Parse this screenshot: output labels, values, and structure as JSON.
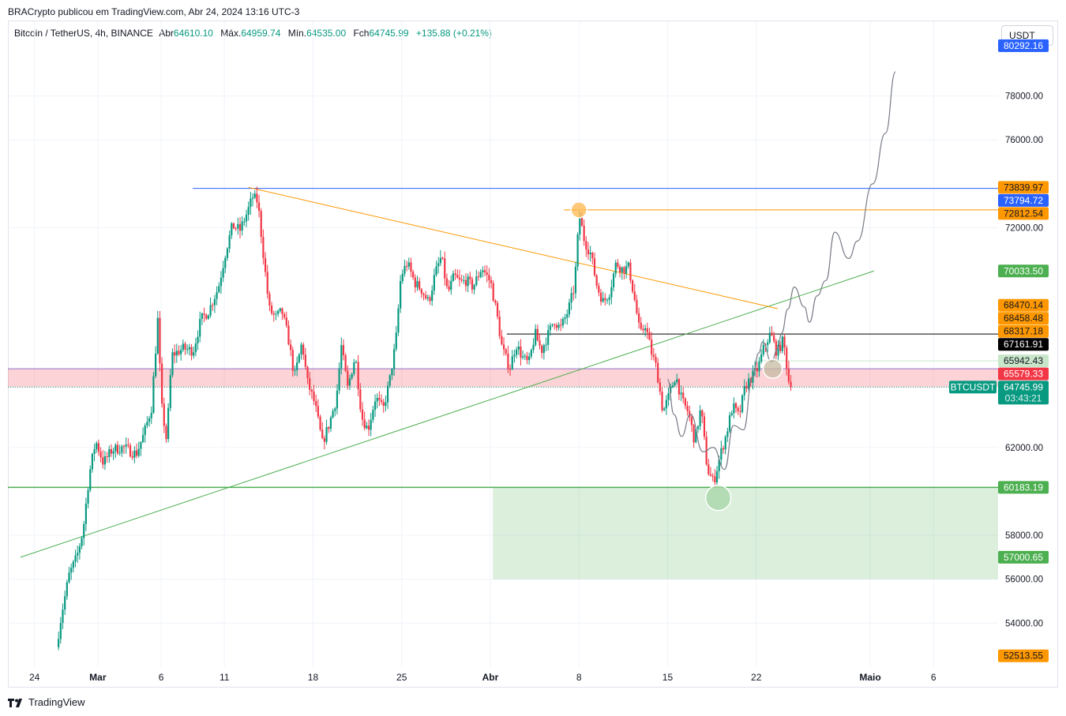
{
  "header": {
    "published": "BRACrypto publicou em TradingView.com, Abr 24, 2024 13:16 UTC-3",
    "symbol": "Bitcoin / TetherUS, 4h, BINANCE",
    "open_label": "Abr",
    "open": "64610.10",
    "high_label": "Máx.",
    "high": "64959.74",
    "low_label": "Mín.",
    "low": "64535.00",
    "close_label": "Fch",
    "close": "64745.99",
    "change": "+135.88 (+0.21%)",
    "currency": "USDT"
  },
  "footer": {
    "brand": "TradingView"
  },
  "colors": {
    "up": "#089981",
    "down": "#f23645",
    "grid": "#f0f3fa",
    "orange": "#ff9800",
    "blue": "#2962ff",
    "green": "#4caf50"
  },
  "chart_data": {
    "type": "candlestick",
    "x_ticks": [
      {
        "label": "24",
        "day": 0
      },
      {
        "label": "Mar",
        "day": 5,
        "bold": true
      },
      {
        "label": "6",
        "day": 10
      },
      {
        "label": "11",
        "day": 15
      },
      {
        "label": "18",
        "day": 22
      },
      {
        "label": "25",
        "day": 29
      },
      {
        "label": "Abr",
        "day": 36,
        "bold": true
      },
      {
        "label": "8",
        "day": 43
      },
      {
        "label": "15",
        "day": 50
      },
      {
        "label": "22",
        "day": 57
      },
      {
        "label": "Maio",
        "day": 66,
        "bold": true
      },
      {
        "label": "6",
        "day": 71
      }
    ],
    "y_ticks": [
      54000,
      56000,
      58000,
      62000,
      72000,
      76000,
      78000
    ],
    "y_range": [
      52000,
      81400
    ],
    "x_range_days": [
      -2.1,
      76.1
    ],
    "price_anchors": [
      [
        1.9,
        52900
      ],
      [
        2.3,
        54400
      ],
      [
        2.9,
        56200
      ],
      [
        3.5,
        57000
      ],
      [
        4.0,
        58200
      ],
      [
        4.5,
        60800
      ],
      [
        5.0,
        62300
      ],
      [
        5.6,
        61300
      ],
      [
        6.3,
        61900
      ],
      [
        7.2,
        62000
      ],
      [
        8.2,
        61700
      ],
      [
        8.8,
        62600
      ],
      [
        9.4,
        63800
      ],
      [
        9.9,
        67800
      ],
      [
        10.2,
        63900
      ],
      [
        10.6,
        62300
      ],
      [
        11.0,
        66200
      ],
      [
        11.9,
        66500
      ],
      [
        12.7,
        66400
      ],
      [
        13.3,
        67800
      ],
      [
        13.9,
        68200
      ],
      [
        14.7,
        69300
      ],
      [
        15.3,
        71000
      ],
      [
        15.8,
        72100
      ],
      [
        16.4,
        71900
      ],
      [
        16.9,
        72600
      ],
      [
        17.4,
        73400
      ],
      [
        17.8,
        73200
      ],
      [
        18.2,
        71000
      ],
      [
        18.7,
        68300
      ],
      [
        19.2,
        67900
      ],
      [
        19.7,
        68200
      ],
      [
        20.2,
        67000
      ],
      [
        20.7,
        65200
      ],
      [
        21.3,
        66800
      ],
      [
        21.7,
        65000
      ],
      [
        22.3,
        64000
      ],
      [
        22.9,
        62200
      ],
      [
        23.4,
        63000
      ],
      [
        24.0,
        64200
      ],
      [
        24.4,
        66600
      ],
      [
        24.9,
        64700
      ],
      [
        25.5,
        66200
      ],
      [
        26.0,
        63400
      ],
      [
        26.5,
        62800
      ],
      [
        27.1,
        64300
      ],
      [
        27.7,
        63700
      ],
      [
        28.2,
        65000
      ],
      [
        28.7,
        66800
      ],
      [
        29.1,
        69800
      ],
      [
        29.6,
        70400
      ],
      [
        30.2,
        69500
      ],
      [
        30.7,
        69200
      ],
      [
        31.3,
        68600
      ],
      [
        31.8,
        69900
      ],
      [
        32.3,
        70700
      ],
      [
        32.8,
        69000
      ],
      [
        33.3,
        69800
      ],
      [
        33.8,
        69500
      ],
      [
        34.3,
        69600
      ],
      [
        34.8,
        69300
      ],
      [
        35.5,
        70200
      ],
      [
        36.2,
        69500
      ],
      [
        36.7,
        68000
      ],
      [
        37.1,
        66500
      ],
      [
        37.7,
        65600
      ],
      [
        38.2,
        66700
      ],
      [
        38.7,
        66100
      ],
      [
        39.2,
        65800
      ],
      [
        39.7,
        67200
      ],
      [
        40.2,
        66400
      ],
      [
        40.7,
        67100
      ],
      [
        41.2,
        67800
      ],
      [
        41.7,
        67400
      ],
      [
        42.3,
        68200
      ],
      [
        42.8,
        69300
      ],
      [
        43.2,
        72600
      ],
      [
        43.6,
        71400
      ],
      [
        44.1,
        70800
      ],
      [
        44.6,
        69300
      ],
      [
        45.1,
        68600
      ],
      [
        45.6,
        69100
      ],
      [
        46.1,
        70400
      ],
      [
        46.6,
        70100
      ],
      [
        47.1,
        70200
      ],
      [
        47.6,
        68600
      ],
      [
        48.0,
        67100
      ],
      [
        48.4,
        67600
      ],
      [
        48.9,
        66300
      ],
      [
        49.3,
        65600
      ],
      [
        49.8,
        63600
      ],
      [
        50.3,
        64400
      ],
      [
        50.8,
        65300
      ],
      [
        51.3,
        64100
      ],
      [
        51.8,
        63600
      ],
      [
        52.3,
        62300
      ],
      [
        52.8,
        63800
      ],
      [
        53.3,
        61000
      ],
      [
        53.8,
        60400
      ],
      [
        54.3,
        61600
      ],
      [
        54.8,
        62600
      ],
      [
        55.3,
        63900
      ],
      [
        55.8,
        63400
      ],
      [
        56.3,
        64800
      ],
      [
        56.8,
        65200
      ],
      [
        57.3,
        65600
      ],
      [
        57.8,
        66600
      ],
      [
        58.3,
        67200
      ],
      [
        58.8,
        66300
      ],
      [
        59.3,
        66900
      ],
      [
        59.8,
        64750
      ]
    ],
    "levels": [
      {
        "value": 73794.72,
        "label": "73794.72",
        "color": "#2962ff"
      },
      {
        "value": 72812.54,
        "label": "72812.54",
        "color": "#ff9800"
      },
      {
        "value": 67161.91,
        "label": "67161.91",
        "color": "#000000"
      },
      {
        "value": 60183.19,
        "label": "60183.19",
        "color": "#4caf50"
      }
    ],
    "price_tags": [
      {
        "value": 80292.16,
        "label": "80292.16",
        "bg": "#2962ff",
        "fg": "#ffffff"
      },
      {
        "value": 73839.97,
        "label": "73839.97",
        "bg": "#ff9800",
        "fg": "#131722"
      },
      {
        "value": 73794.72,
        "label": "73794.72",
        "bg": "#2962ff",
        "fg": "#ffffff"
      },
      {
        "value": 72812.54,
        "label": "72812.54",
        "bg": "#ff9800",
        "fg": "#131722"
      },
      {
        "value": 70033.5,
        "label": "70033.50",
        "bg": "#4caf50",
        "fg": "#ffffff"
      },
      {
        "value": 68470.14,
        "label": "68470.14",
        "bg": "#ff9800",
        "fg": "#131722"
      },
      {
        "value": 68458.48,
        "label": "68458.48",
        "bg": "#ff9800",
        "fg": "#131722"
      },
      {
        "value": 68317.18,
        "label": "68317.18",
        "bg": "#ff9800",
        "fg": "#131722"
      },
      {
        "value": 67161.91,
        "label": "67161.91",
        "bg": "#000000",
        "fg": "#ffffff"
      },
      {
        "value": 65942.43,
        "label": "65942.43",
        "bg": "#c8e6c9",
        "fg": "#131722"
      },
      {
        "value": 65579.33,
        "label": "65579.33",
        "bg": "#f23645",
        "fg": "#ffffff"
      },
      {
        "value": 60183.19,
        "label": "60183.19",
        "bg": "#4caf50",
        "fg": "#ffffff"
      },
      {
        "value": 57000.65,
        "label": "57000.65",
        "bg": "#4caf50",
        "fg": "#ffffff"
      },
      {
        "value": 52513.55,
        "label": "52513.55",
        "bg": "#ff9800",
        "fg": "#131722"
      }
    ],
    "last_price": {
      "symbol": "BTCUSDT",
      "value": 64745.99,
      "label": "64745.99",
      "countdown": "03:43:21"
    },
    "zones": [
      {
        "from_day": -2.1,
        "to_day": 76.1,
        "low": 64745.99,
        "high": 65579.33,
        "color": "#f23645",
        "opacity": 0.22
      },
      {
        "from_day": 36.2,
        "to_day": 76.1,
        "low": 56000,
        "high": 60183.19,
        "color": "#4caf50",
        "opacity": 0.2
      }
    ],
    "trendlines": [
      {
        "x1": -1.1,
        "y1": 57000.65,
        "x2": 66.3,
        "y2": 70033.5,
        "color": "#4caf50"
      },
      {
        "x1": 16.9,
        "y1": 73839.97,
        "x2": 58.7,
        "y2": 68317.18,
        "color": "#ff9800"
      }
    ],
    "projection": [
      [
        50.0,
        65100
      ],
      [
        50.5,
        63500
      ],
      [
        51.1,
        62500
      ],
      [
        51.8,
        63500
      ],
      [
        52.8,
        61800
      ],
      [
        53.6,
        62000
      ],
      [
        54.5,
        61000
      ],
      [
        55.2,
        63000
      ],
      [
        56.0,
        62800
      ],
      [
        56.7,
        65200
      ],
      [
        57.2,
        66300
      ],
      [
        57.5,
        66800
      ],
      [
        58.2,
        65900
      ],
      [
        58.7,
        66500
      ],
      [
        59.0,
        67200
      ],
      [
        59.5,
        68300
      ],
      [
        60.0,
        69300
      ],
      [
        60.8,
        68400
      ],
      [
        61.2,
        67700
      ],
      [
        61.8,
        68900
      ],
      [
        62.5,
        69600
      ],
      [
        63.2,
        71800
      ],
      [
        64.3,
        70600
      ],
      [
        65.0,
        71400
      ],
      [
        66.2,
        74000
      ],
      [
        67.2,
        76300
      ],
      [
        68.0,
        79100
      ]
    ],
    "markers": [
      {
        "day": 43.0,
        "price": 72812.54,
        "color": "#ffb74d"
      },
      {
        "day": 58.3,
        "price": 65579.33,
        "color": "#c5b9a0"
      },
      {
        "day": 54.0,
        "price": 59700,
        "color": "#a5d6a7"
      }
    ]
  }
}
